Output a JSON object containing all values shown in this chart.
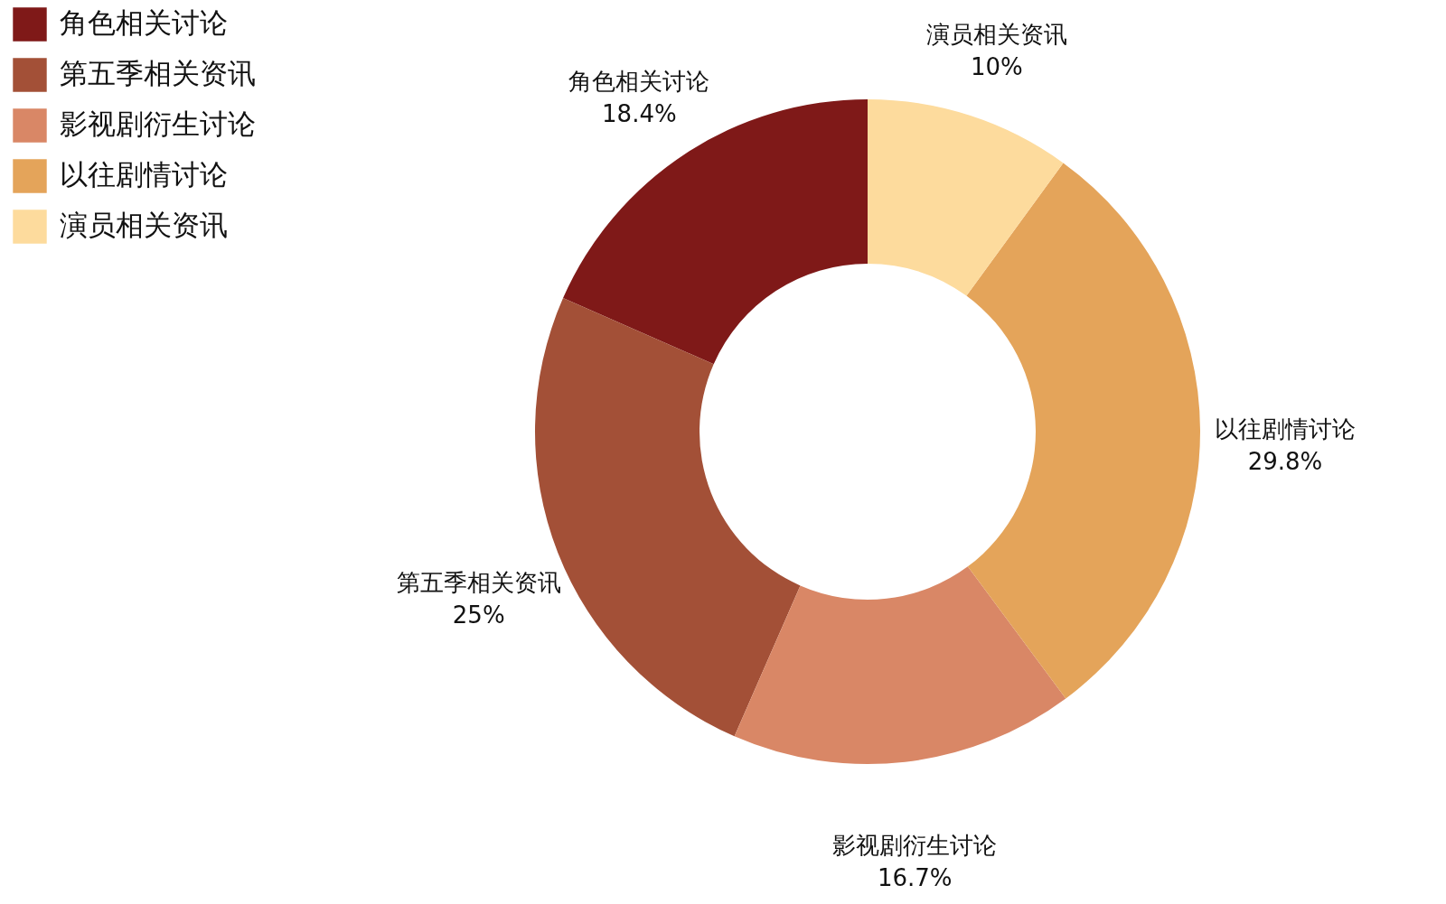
{
  "chart_data": {
    "type": "donut",
    "categories": [
      "角色相关讨论",
      "第五季相关资讯",
      "影视剧衍生讨论",
      "以往剧情讨论",
      "演员相关资讯"
    ],
    "values": [
      18.4,
      25,
      16.7,
      29.8,
      10
    ],
    "value_labels": [
      "18.4%",
      "25%",
      "16.7%",
      "29.8%",
      "10%"
    ],
    "colors": [
      "#7f1918",
      "#a35037",
      "#d98766",
      "#e4a45a",
      "#fddb9d"
    ],
    "legend": "top left"
  }
}
